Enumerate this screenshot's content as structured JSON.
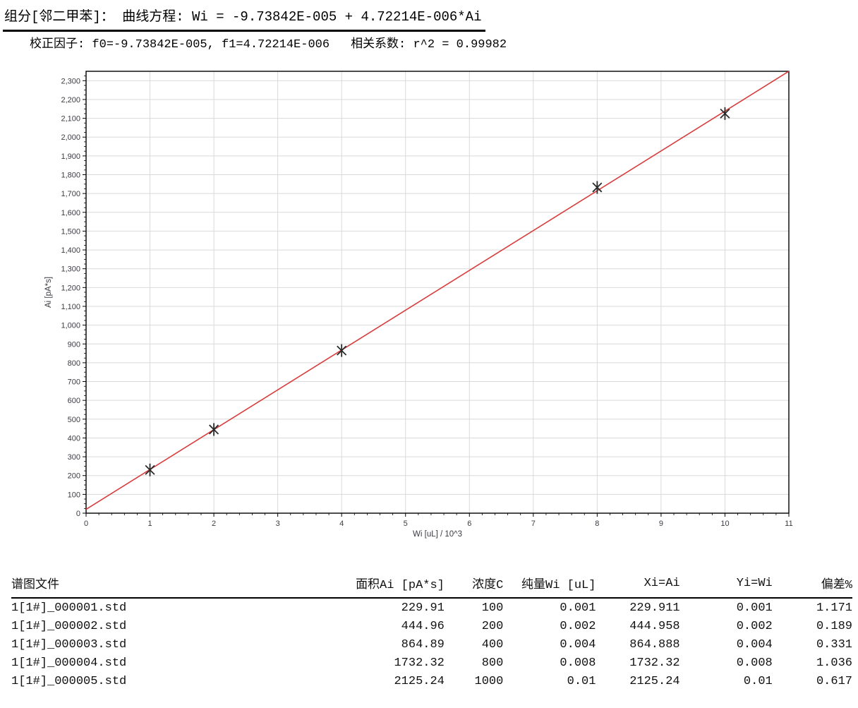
{
  "header": {
    "title": "组分[邻二甲苯]：  曲线方程: Wi = -9.73842E-005 + 4.72214E-006*Ai",
    "factors": "校正因子: f0=-9.73842E-005, f1=4.72214E-006",
    "correlation": "相关系数: r^2 = 0.99982"
  },
  "chart_data": {
    "type": "scatter",
    "x": [
      1,
      2,
      4,
      8,
      10
    ],
    "y": [
      229.911,
      444.958,
      864.888,
      1732.32,
      2125.24
    ],
    "fit_line": {
      "x": [
        0,
        11
      ],
      "y": [
        20.6,
        2350.1
      ]
    },
    "title": "",
    "xlabel": "Wi [uL] / 10^3",
    "ylabel": "Ai [pA*s]",
    "xlim": [
      0,
      11
    ],
    "ylim": [
      0,
      2350
    ],
    "x_major_step": 1,
    "x_minor_step": 0.2,
    "y_major_step": 100,
    "y_minor_step": 25,
    "x_ticks": [
      0,
      1,
      2,
      3,
      4,
      5,
      6,
      7,
      8,
      9,
      10,
      11
    ],
    "y_ticks": [
      0,
      100,
      200,
      300,
      400,
      500,
      600,
      700,
      800,
      900,
      1000,
      1100,
      1200,
      1300,
      1400,
      1500,
      1600,
      1700,
      1800,
      1900,
      2000,
      2100,
      2200,
      2300
    ],
    "y_tick_labels": [
      "0",
      "100",
      "200",
      "300",
      "400",
      "500",
      "600",
      "700",
      "800",
      "900",
      "1,000",
      "1,100",
      "1,200",
      "1,300",
      "1,400",
      "1,500",
      "1,600",
      "1,700",
      "1,800",
      "1,900",
      "2,000",
      "2,100",
      "2,200",
      "2,300"
    ],
    "grid": true,
    "legend": "none",
    "line_color": "#d83c3c",
    "marker_color": "#2b2b2b",
    "grid_color": "#d9d9d9",
    "axis_color": "#000000"
  },
  "table": {
    "columns": [
      "谱图文件",
      "面积Ai [pA*s]",
      "浓度C",
      "纯量Wi [uL]",
      "Xi=Ai",
      "Yi=Wi",
      "偏差%"
    ],
    "rows": [
      [
        "1[1#]_000001.std",
        "229.91",
        "100",
        "0.001",
        "229.911",
        "0.001",
        "1.171"
      ],
      [
        "1[1#]_000002.std",
        "444.96",
        "200",
        "0.002",
        "444.958",
        "0.002",
        "0.189"
      ],
      [
        "1[1#]_000003.std",
        "864.89",
        "400",
        "0.004",
        "864.888",
        "0.004",
        "0.331"
      ],
      [
        "1[1#]_000004.std",
        "1732.32",
        "800",
        "0.008",
        "1732.32",
        "0.008",
        "1.036"
      ],
      [
        "1[1#]_000005.std",
        "2125.24",
        "1000",
        "0.01",
        "2125.24",
        "0.01",
        "0.617"
      ]
    ]
  }
}
